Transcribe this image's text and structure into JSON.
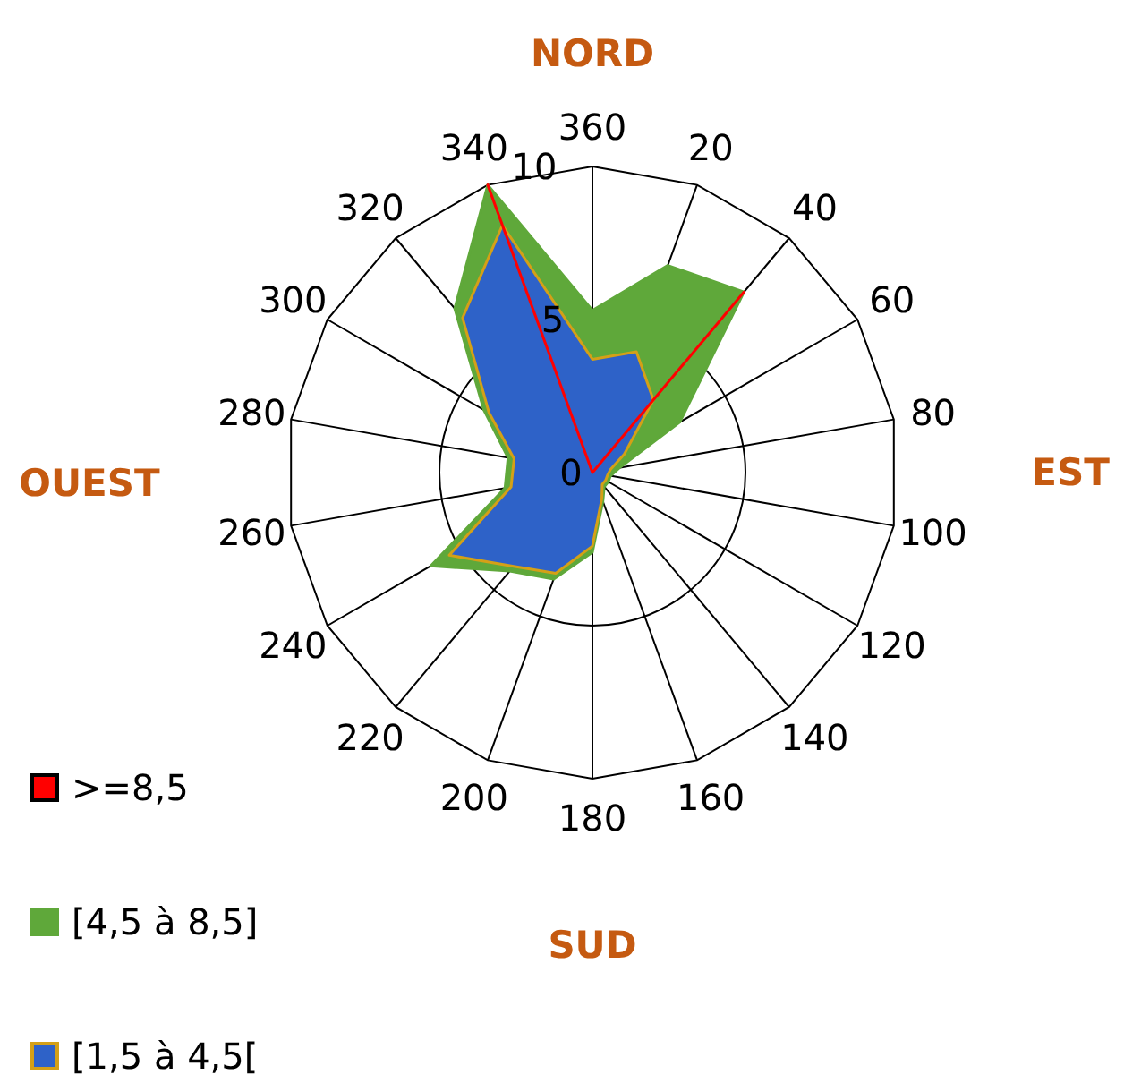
{
  "chart_data": {
    "type": "radar",
    "categories": [
      "360",
      "20",
      "40",
      "60",
      "80",
      "100",
      "120",
      "140",
      "160",
      "180",
      "200",
      "220",
      "240",
      "260",
      "280",
      "300",
      "320",
      "340"
    ],
    "series": [
      {
        "name": ">=8,5",
        "color": "#ff0000",
        "values": [
          0,
          0,
          7.7,
          0,
          0,
          0,
          0,
          0,
          0,
          0,
          0,
          0,
          0,
          0,
          0,
          0,
          0,
          10
        ]
      },
      {
        "name": "[4,5 à 8,5]",
        "color": "#5fa83a",
        "values": [
          5.3,
          7.2,
          7.7,
          3.3,
          0.9,
          0.6,
          0.6,
          0.6,
          1.0,
          2.6,
          3.7,
          4.2,
          6.1,
          2.9,
          2.8,
          4.1,
          7.0,
          10
        ]
      },
      {
        "name": "[1,5 à 4,5[",
        "color": "#2e62c8",
        "values": [
          3.7,
          4.2,
          3.1,
          1.2,
          0.6,
          0.5,
          0.5,
          0.5,
          0.9,
          2.4,
          3.5,
          4.0,
          5.4,
          2.7,
          2.6,
          3.9,
          6.6,
          8.6
        ]
      }
    ],
    "ylim": [
      0,
      10
    ],
    "yticks": [
      0,
      5,
      10
    ],
    "legend": "bottom left",
    "annotations": [
      "NORD",
      "EST",
      "SUD",
      "OUEST"
    ]
  }
}
